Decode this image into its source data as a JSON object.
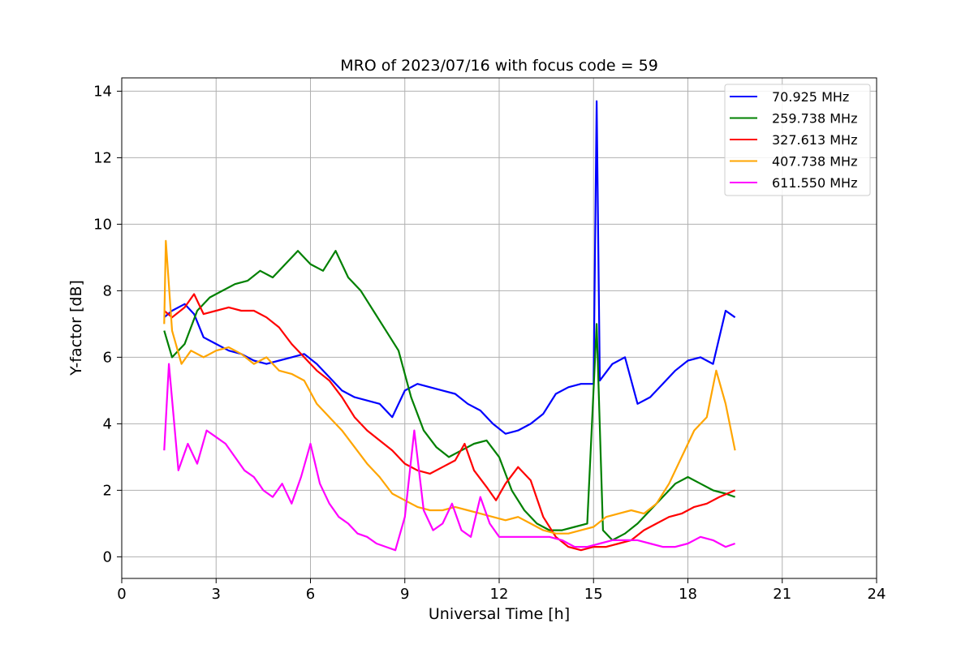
{
  "chart_data": {
    "type": "line",
    "title": "MRO of 2023/07/16 with focus code = 59",
    "xlabel": "Universal Time [h]",
    "ylabel": "Y-factor [dB]",
    "xlim": [
      0,
      24
    ],
    "ylim": [
      -0.65,
      14.4
    ],
    "xticks": [
      0,
      3,
      6,
      9,
      12,
      15,
      18,
      21,
      24
    ],
    "yticks": [
      0,
      2,
      4,
      6,
      8,
      10,
      12,
      14
    ],
    "grid": true,
    "legend_position": "top-right",
    "series": [
      {
        "name": "70.925 MHz",
        "color": "#0000ff",
        "x": [
          1.35,
          1.6,
          2.0,
          2.3,
          2.6,
          3.0,
          3.4,
          3.8,
          4.2,
          4.6,
          5.0,
          5.4,
          5.8,
          6.2,
          6.6,
          7.0,
          7.4,
          7.8,
          8.2,
          8.6,
          9.0,
          9.4,
          9.8,
          10.2,
          10.6,
          11.0,
          11.4,
          11.8,
          12.2,
          12.6,
          13.0,
          13.4,
          13.8,
          14.2,
          14.6,
          15.0,
          15.1,
          15.2,
          15.6,
          16.0,
          16.4,
          16.8,
          17.2,
          17.6,
          18.0,
          18.4,
          18.8,
          19.2,
          19.5
        ],
        "y": [
          7.2,
          7.4,
          7.6,
          7.3,
          6.6,
          6.4,
          6.2,
          6.1,
          5.9,
          5.8,
          5.9,
          6.0,
          6.1,
          5.8,
          5.4,
          5.0,
          4.8,
          4.7,
          4.6,
          4.2,
          5.0,
          5.2,
          5.1,
          5.0,
          4.9,
          4.6,
          4.4,
          4.0,
          3.7,
          3.8,
          4.0,
          4.3,
          4.9,
          5.1,
          5.2,
          5.2,
          13.7,
          5.3,
          5.8,
          6.0,
          4.6,
          4.8,
          5.2,
          5.6,
          5.9,
          6.0,
          5.8,
          7.4,
          7.2
        ]
      },
      {
        "name": "259.738 MHz",
        "color": "#008000",
        "x": [
          1.35,
          1.6,
          2.0,
          2.4,
          2.8,
          3.2,
          3.6,
          4.0,
          4.4,
          4.8,
          5.2,
          5.6,
          6.0,
          6.4,
          6.8,
          7.2,
          7.6,
          8.0,
          8.4,
          8.8,
          9.2,
          9.6,
          10.0,
          10.4,
          10.8,
          11.2,
          11.6,
          12.0,
          12.4,
          12.8,
          13.2,
          13.6,
          14.0,
          14.4,
          14.8,
          15.1,
          15.3,
          15.6,
          16.0,
          16.4,
          16.8,
          17.2,
          17.6,
          18.0,
          18.4,
          18.8,
          19.2,
          19.5
        ],
        "y": [
          6.8,
          6.0,
          6.4,
          7.4,
          7.8,
          8.0,
          8.2,
          8.3,
          8.6,
          8.4,
          8.8,
          9.2,
          8.8,
          8.6,
          9.2,
          8.4,
          8.0,
          7.4,
          6.8,
          6.2,
          4.8,
          3.8,
          3.3,
          3.0,
          3.2,
          3.4,
          3.5,
          3.0,
          2.0,
          1.4,
          1.0,
          0.8,
          0.8,
          0.9,
          1.0,
          7.0,
          0.8,
          0.5,
          0.7,
          1.0,
          1.4,
          1.8,
          2.2,
          2.4,
          2.2,
          2.0,
          1.9,
          1.8
        ]
      },
      {
        "name": "327.613 MHz",
        "color": "#ff0000",
        "x": [
          1.35,
          1.6,
          2.0,
          2.3,
          2.6,
          3.0,
          3.4,
          3.8,
          4.2,
          4.6,
          5.0,
          5.4,
          5.8,
          6.2,
          6.6,
          7.0,
          7.4,
          7.8,
          8.2,
          8.6,
          9.0,
          9.4,
          9.8,
          10.2,
          10.6,
          10.9,
          11.2,
          11.6,
          11.9,
          12.2,
          12.6,
          13.0,
          13.4,
          13.8,
          14.2,
          14.6,
          15.0,
          15.4,
          15.8,
          16.2,
          16.6,
          17.0,
          17.4,
          17.8,
          18.2,
          18.6,
          19.0,
          19.5
        ],
        "y": [
          7.4,
          7.2,
          7.5,
          7.9,
          7.3,
          7.4,
          7.5,
          7.4,
          7.4,
          7.2,
          6.9,
          6.4,
          6.0,
          5.6,
          5.3,
          4.8,
          4.2,
          3.8,
          3.5,
          3.2,
          2.8,
          2.6,
          2.5,
          2.7,
          2.9,
          3.4,
          2.6,
          2.1,
          1.7,
          2.2,
          2.7,
          2.3,
          1.2,
          0.6,
          0.3,
          0.2,
          0.3,
          0.3,
          0.4,
          0.5,
          0.8,
          1.0,
          1.2,
          1.3,
          1.5,
          1.6,
          1.8,
          2.0
        ]
      },
      {
        "name": "407.738 MHz",
        "color": "#ffa500",
        "x": [
          1.35,
          1.4,
          1.6,
          1.9,
          2.2,
          2.6,
          3.0,
          3.4,
          3.8,
          4.2,
          4.6,
          5.0,
          5.4,
          5.8,
          6.2,
          6.6,
          7.0,
          7.4,
          7.8,
          8.2,
          8.6,
          9.0,
          9.4,
          9.8,
          10.2,
          10.6,
          11.0,
          11.4,
          11.8,
          12.2,
          12.6,
          13.0,
          13.4,
          13.8,
          14.2,
          14.6,
          15.0,
          15.4,
          15.8,
          16.2,
          16.6,
          17.0,
          17.4,
          17.8,
          18.2,
          18.6,
          18.9,
          19.2,
          19.5
        ],
        "y": [
          7.0,
          9.5,
          6.8,
          5.8,
          6.2,
          6.0,
          6.2,
          6.3,
          6.1,
          5.8,
          6.0,
          5.6,
          5.5,
          5.3,
          4.6,
          4.2,
          3.8,
          3.3,
          2.8,
          2.4,
          1.9,
          1.7,
          1.5,
          1.4,
          1.4,
          1.5,
          1.4,
          1.3,
          1.2,
          1.1,
          1.2,
          1.0,
          0.8,
          0.7,
          0.7,
          0.8,
          0.9,
          1.2,
          1.3,
          1.4,
          1.3,
          1.6,
          2.2,
          3.0,
          3.8,
          4.2,
          5.6,
          4.6,
          3.2
        ]
      },
      {
        "name": "611.550 MHz",
        "color": "#ff00ff",
        "x": [
          1.35,
          1.5,
          1.8,
          2.1,
          2.4,
          2.7,
          3.0,
          3.3,
          3.6,
          3.9,
          4.2,
          4.5,
          4.8,
          5.1,
          5.4,
          5.7,
          6.0,
          6.3,
          6.6,
          6.9,
          7.2,
          7.5,
          7.8,
          8.1,
          8.4,
          8.7,
          9.0,
          9.3,
          9.6,
          9.9,
          10.2,
          10.5,
          10.8,
          11.1,
          11.4,
          11.7,
          12.0,
          12.4,
          12.8,
          13.2,
          13.6,
          14.0,
          14.4,
          14.8,
          15.2,
          15.6,
          16.0,
          16.4,
          16.8,
          17.2,
          17.6,
          18.0,
          18.4,
          18.8,
          19.2,
          19.5
        ],
        "y": [
          3.2,
          5.8,
          2.6,
          3.4,
          2.8,
          3.8,
          3.6,
          3.4,
          3.0,
          2.6,
          2.4,
          2.0,
          1.8,
          2.2,
          1.6,
          2.4,
          3.4,
          2.2,
          1.6,
          1.2,
          1.0,
          0.7,
          0.6,
          0.4,
          0.3,
          0.2,
          1.2,
          3.8,
          1.4,
          0.8,
          1.0,
          1.6,
          0.8,
          0.6,
          1.8,
          1.0,
          0.6,
          0.6,
          0.6,
          0.6,
          0.6,
          0.5,
          0.3,
          0.3,
          0.4,
          0.5,
          0.5,
          0.5,
          0.4,
          0.3,
          0.3,
          0.4,
          0.6,
          0.5,
          0.3,
          0.4
        ]
      }
    ]
  }
}
